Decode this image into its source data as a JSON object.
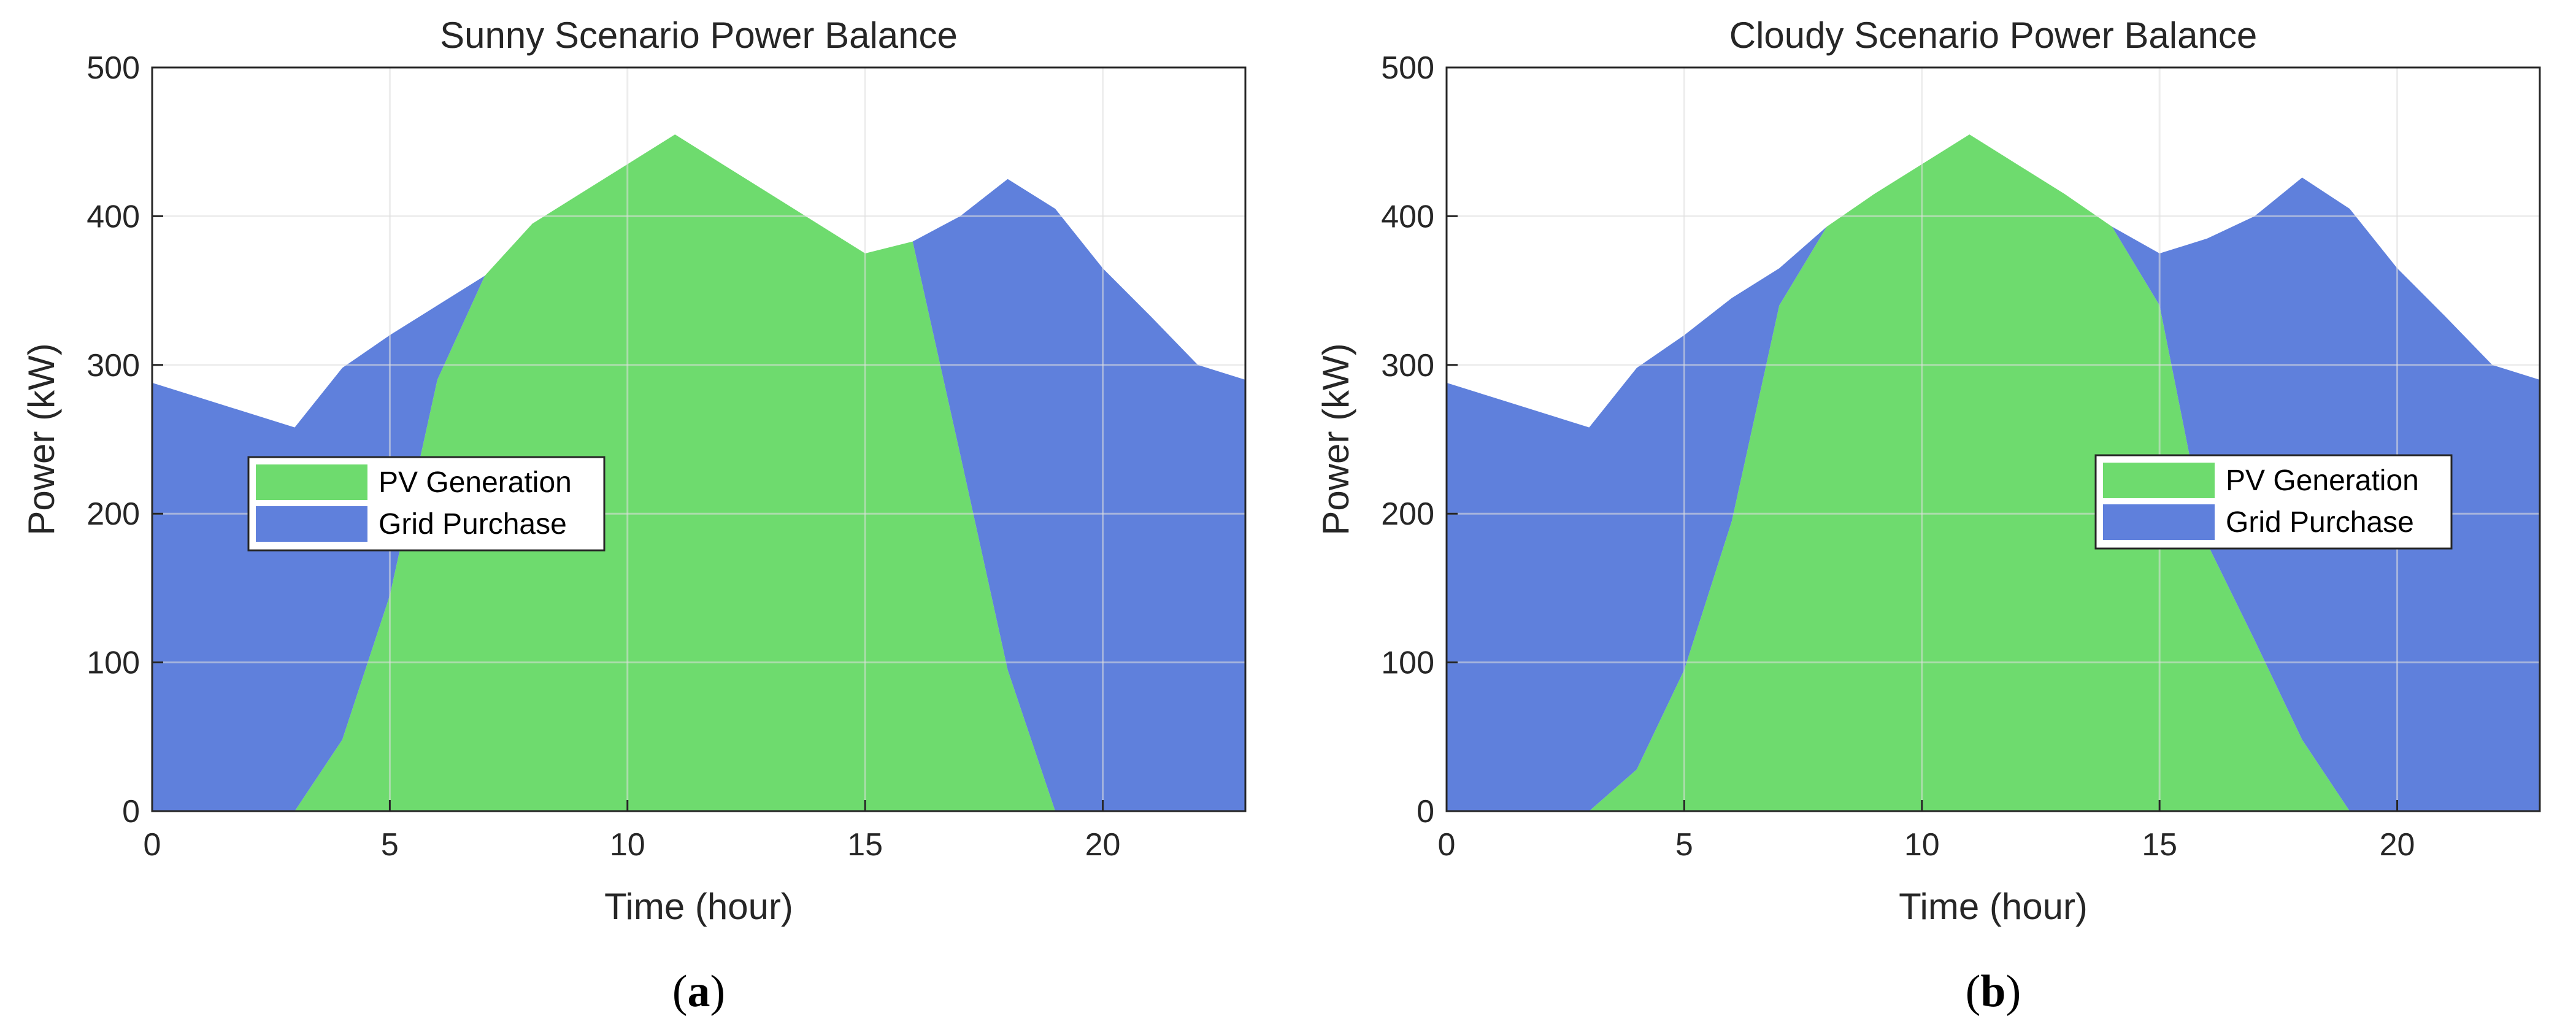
{
  "chart_data": [
    {
      "type": "area",
      "title": "Sunny Scenario Power Balance",
      "xlabel": "Time (hour)",
      "ylabel": "Power (kW)",
      "xlim": [
        0,
        23
      ],
      "ylim": [
        0,
        500
      ],
      "xticks": [
        0,
        5,
        10,
        15,
        20
      ],
      "yticks": [
        0,
        100,
        200,
        300,
        400,
        500
      ],
      "grid": true,
      "legend_position": "middle-left",
      "x": [
        0,
        1,
        2,
        3,
        4,
        5,
        6,
        7,
        8,
        9,
        10,
        11,
        12,
        13,
        14,
        15,
        16,
        17,
        18,
        19,
        20,
        21,
        22,
        23
      ],
      "series": [
        {
          "name": "PV Generation",
          "color": "#6edb6e",
          "values": [
            0,
            0,
            0,
            0,
            48,
            145,
            290,
            360,
            395,
            415,
            435,
            455,
            435,
            415,
            395,
            375,
            383,
            240,
            95,
            0,
            0,
            0,
            0,
            0
          ]
        },
        {
          "name": "Grid Purchase",
          "color": "#5f80dc",
          "values": [
            288,
            278,
            268,
            258,
            250,
            175,
            50,
            0,
            0,
            0,
            0,
            0,
            0,
            0,
            0,
            0,
            0,
            160,
            330,
            405,
            365,
            333,
            300,
            290
          ]
        }
      ],
      "panel_label": "a"
    },
    {
      "type": "area",
      "title": "Cloudy Scenario Power Balance",
      "xlabel": "Time (hour)",
      "ylabel": "Power (kW)",
      "xlim": [
        0,
        23
      ],
      "ylim": [
        0,
        500
      ],
      "xticks": [
        0,
        5,
        10,
        15,
        20
      ],
      "yticks": [
        0,
        100,
        200,
        300,
        400,
        500
      ],
      "grid": true,
      "legend_position": "middle-right",
      "x": [
        0,
        1,
        2,
        3,
        4,
        5,
        6,
        7,
        8,
        9,
        10,
        11,
        12,
        13,
        14,
        15,
        16,
        17,
        18,
        19,
        20,
        21,
        22,
        23
      ],
      "series": [
        {
          "name": "PV Generation",
          "color": "#6edb6e",
          "values": [
            0,
            0,
            0,
            0,
            28,
            95,
            195,
            340,
            393,
            415,
            435,
            455,
            435,
            415,
            393,
            340,
            180,
            115,
            48,
            0,
            0,
            0,
            0,
            0
          ]
        },
        {
          "name": "Grid Purchase",
          "color": "#5f80dc",
          "values": [
            288,
            278,
            268,
            258,
            270,
            225,
            150,
            25,
            0,
            0,
            0,
            0,
            0,
            0,
            0,
            35,
            205,
            285,
            378,
            405,
            365,
            333,
            300,
            290
          ]
        }
      ],
      "panel_label": "b"
    }
  ],
  "panel_label_open": "(",
  "panel_label_close": ")"
}
